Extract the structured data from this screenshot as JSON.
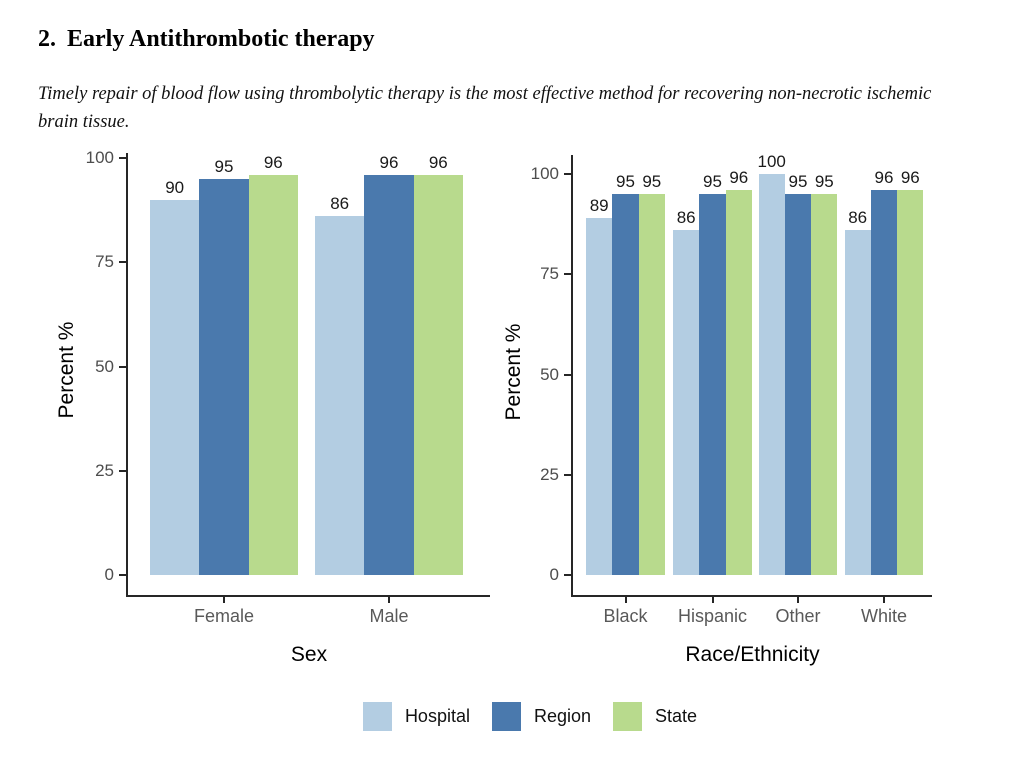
{
  "heading": {
    "number": "2.",
    "title": "Early Antithrombotic therapy",
    "subtitle": "Timely repair of blood flow using thrombolytic therapy is the most effective method for recovering non-necrotic ischemic brain tissue."
  },
  "palette": {
    "Hospital": "#b3cde2",
    "Region": "#4a79ad",
    "State": "#b8da8d"
  },
  "style": {
    "background": "#ffffff",
    "axis_color": "#262626",
    "tick_label_color": "#4d4d4d",
    "category_label_color": "#595959",
    "value_label_color": "#1a1a1a",
    "axis_title_color": "#000000"
  },
  "legend": {
    "position": "bottom-center",
    "items": [
      {
        "label": "Hospital",
        "color": "#b3cde2"
      },
      {
        "label": "Region",
        "color": "#4a79ad"
      },
      {
        "label": "State",
        "color": "#b8da8d"
      }
    ]
  },
  "chart_data": [
    {
      "type": "bar",
      "title": "",
      "xlabel": "Sex",
      "ylabel": "Percent %",
      "ylim": [
        0,
        100
      ],
      "yticks": [
        0,
        25,
        50,
        75,
        100
      ],
      "grid": false,
      "value_labels": true,
      "categories": [
        "Female",
        "Male"
      ],
      "series": [
        {
          "name": "Hospital",
          "values": [
            90,
            86
          ]
        },
        {
          "name": "Region",
          "values": [
            95,
            96
          ]
        },
        {
          "name": "State",
          "values": [
            96,
            96
          ]
        }
      ]
    },
    {
      "type": "bar",
      "title": "",
      "xlabel": "Race/Ethnicity",
      "ylabel": "Percent %",
      "ylim": [
        0,
        100
      ],
      "yticks": [
        0,
        25,
        50,
        75,
        100
      ],
      "grid": false,
      "value_labels": true,
      "categories": [
        "Black",
        "Hispanic",
        "Other",
        "White"
      ],
      "series": [
        {
          "name": "Hospital",
          "values": [
            89,
            86,
            100,
            86
          ]
        },
        {
          "name": "Region",
          "values": [
            95,
            95,
            95,
            96
          ]
        },
        {
          "name": "State",
          "values": [
            95,
            96,
            95,
            96
          ]
        }
      ]
    }
  ]
}
